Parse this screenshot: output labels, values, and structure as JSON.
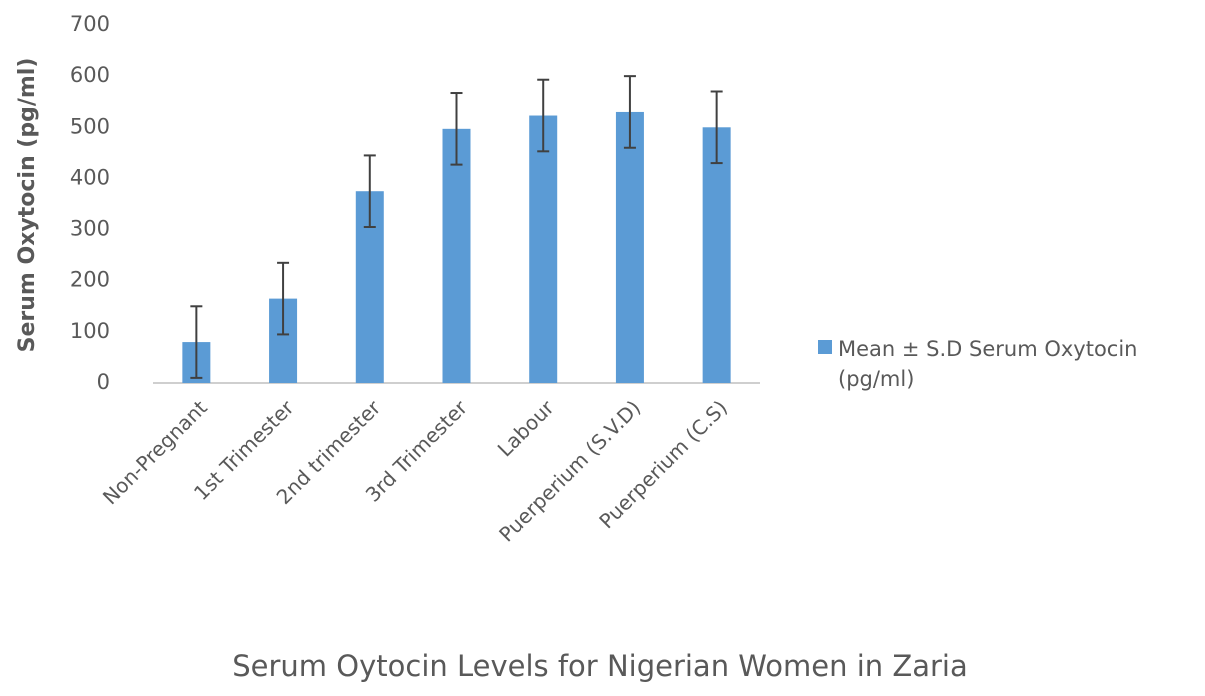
{
  "chart_data": {
    "type": "bar",
    "title": "Serum Oytocin Levels for Nigerian Women in Zaria",
    "y_label": "Serum  Oxytocin (pg/ml)",
    "categories": [
      "Non-Pregnant",
      "1st Trimester",
      "2nd trimester",
      "3rd Trimester",
      "Labour",
      "Puerperium (S.V.D)",
      "Puerperium (C.S)"
    ],
    "series": [
      {
        "name": "Mean ± S.D Serum Oxytocin (pg/ml)",
        "color": "#5b9bd5",
        "values": [
          80,
          165,
          375,
          497,
          523,
          530,
          500
        ],
        "errors": [
          70,
          70,
          70,
          70,
          70,
          70,
          70
        ]
      }
    ],
    "ylim": [
      0,
      700
    ],
    "yticks": [
      0,
      100,
      200,
      300,
      400,
      500,
      600,
      700
    ],
    "grid": false,
    "legend": "right"
  }
}
